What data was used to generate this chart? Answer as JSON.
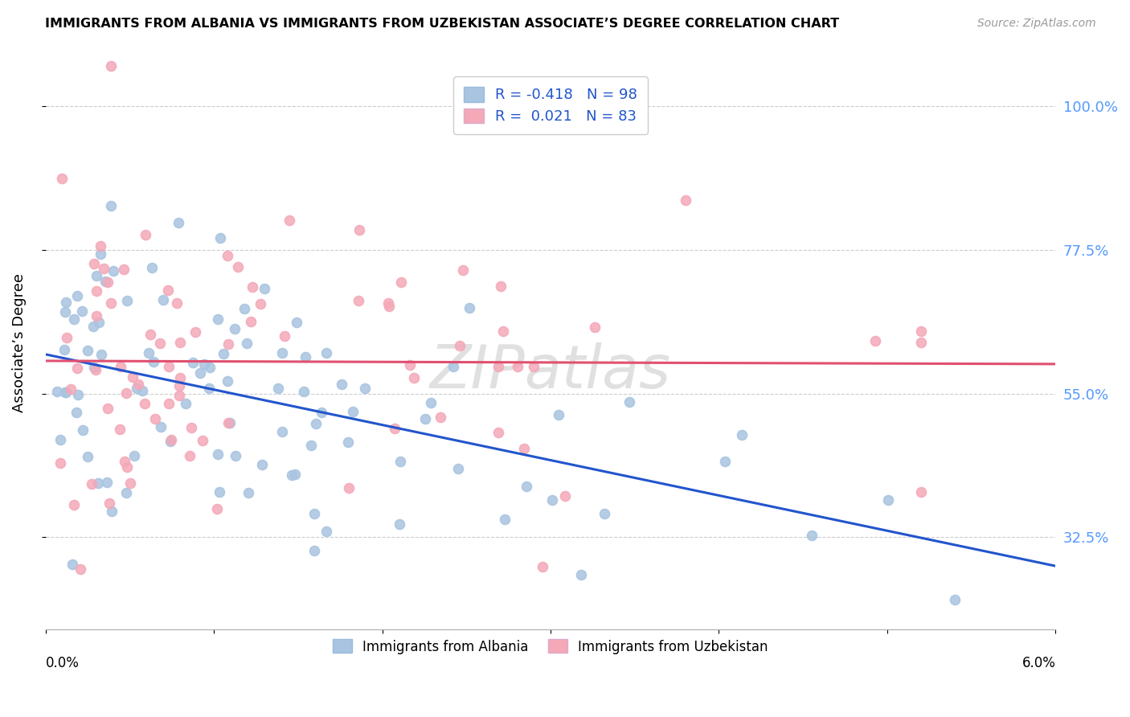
{
  "title": "IMMIGRANTS FROM ALBANIA VS IMMIGRANTS FROM UZBEKISTAN ASSOCIATE’S DEGREE CORRELATION CHART",
  "source": "Source: ZipAtlas.com",
  "ylabel": "Associate’s Degree",
  "yticks": [
    "100.0%",
    "77.5%",
    "55.0%",
    "32.5%"
  ],
  "ytick_vals": [
    1.0,
    0.775,
    0.55,
    0.325
  ],
  "xlim": [
    0.0,
    0.06
  ],
  "ylim": [
    0.18,
    1.08
  ],
  "legend_r_albania": "-0.418",
  "legend_n_albania": "98",
  "legend_r_uzbekistan": "0.021",
  "legend_n_uzbekistan": "83",
  "albania_color": "#a8c4e0",
  "uzbekistan_color": "#f4a8b8",
  "albania_line_color": "#2255cc",
  "uzbekistan_line_color": "#e05070",
  "background_color": "#ffffff",
  "grid_color": "#cccccc"
}
